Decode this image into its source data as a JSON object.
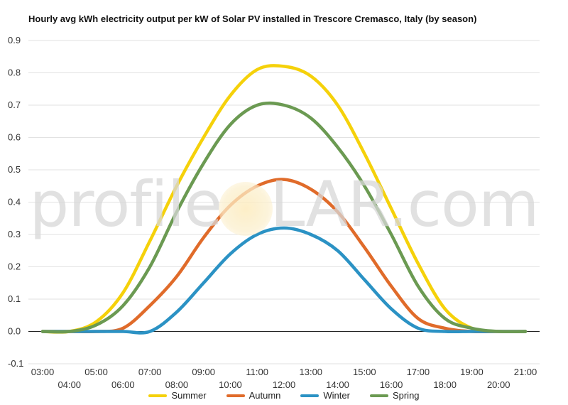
{
  "chart_data": {
    "type": "line",
    "title": "Hourly avg kWh electricity output per kW of Solar PV installed in Trescore Cremasco, Italy (by season)",
    "xlabel": "",
    "ylabel": "",
    "ylim": [
      -0.1,
      0.9
    ],
    "yticks": [
      "0.9",
      "0.8",
      "0.7",
      "0.6",
      "0.5",
      "0.4",
      "0.3",
      "0.2",
      "0.1",
      "0.0",
      "-0.1"
    ],
    "x": [
      "03:00",
      "04:00",
      "05:00",
      "06:00",
      "07:00",
      "08:00",
      "09:00",
      "10:00",
      "11:00",
      "12:00",
      "13:00",
      "14:00",
      "15:00",
      "16:00",
      "17:00",
      "18:00",
      "19:00",
      "20:00",
      "21:00"
    ],
    "grid": true,
    "legend_position": "bottom",
    "series": [
      {
        "name": "Summer",
        "color": "#f5d10a",
        "values": [
          0.0,
          0.0,
          0.03,
          0.12,
          0.28,
          0.45,
          0.6,
          0.73,
          0.81,
          0.82,
          0.79,
          0.7,
          0.55,
          0.38,
          0.21,
          0.07,
          0.01,
          0.0,
          0.0
        ]
      },
      {
        "name": "Autumn",
        "color": "#e06b2a",
        "values": [
          0.0,
          0.0,
          0.0,
          0.01,
          0.08,
          0.17,
          0.29,
          0.39,
          0.45,
          0.47,
          0.44,
          0.37,
          0.26,
          0.14,
          0.04,
          0.01,
          0.0,
          0.0,
          0.0
        ]
      },
      {
        "name": "Winter",
        "color": "#2b92c4",
        "values": [
          0.0,
          0.0,
          0.0,
          0.0,
          0.0,
          0.06,
          0.15,
          0.24,
          0.3,
          0.32,
          0.3,
          0.25,
          0.16,
          0.07,
          0.01,
          0.0,
          0.0,
          0.0,
          0.0
        ]
      },
      {
        "name": "Spring",
        "color": "#6b9a52",
        "values": [
          0.0,
          0.0,
          0.02,
          0.08,
          0.2,
          0.37,
          0.52,
          0.64,
          0.7,
          0.7,
          0.66,
          0.57,
          0.45,
          0.3,
          0.14,
          0.04,
          0.01,
          0.0,
          0.0
        ]
      }
    ]
  },
  "watermark": {
    "left": "profile",
    "right": "LAR.com"
  }
}
